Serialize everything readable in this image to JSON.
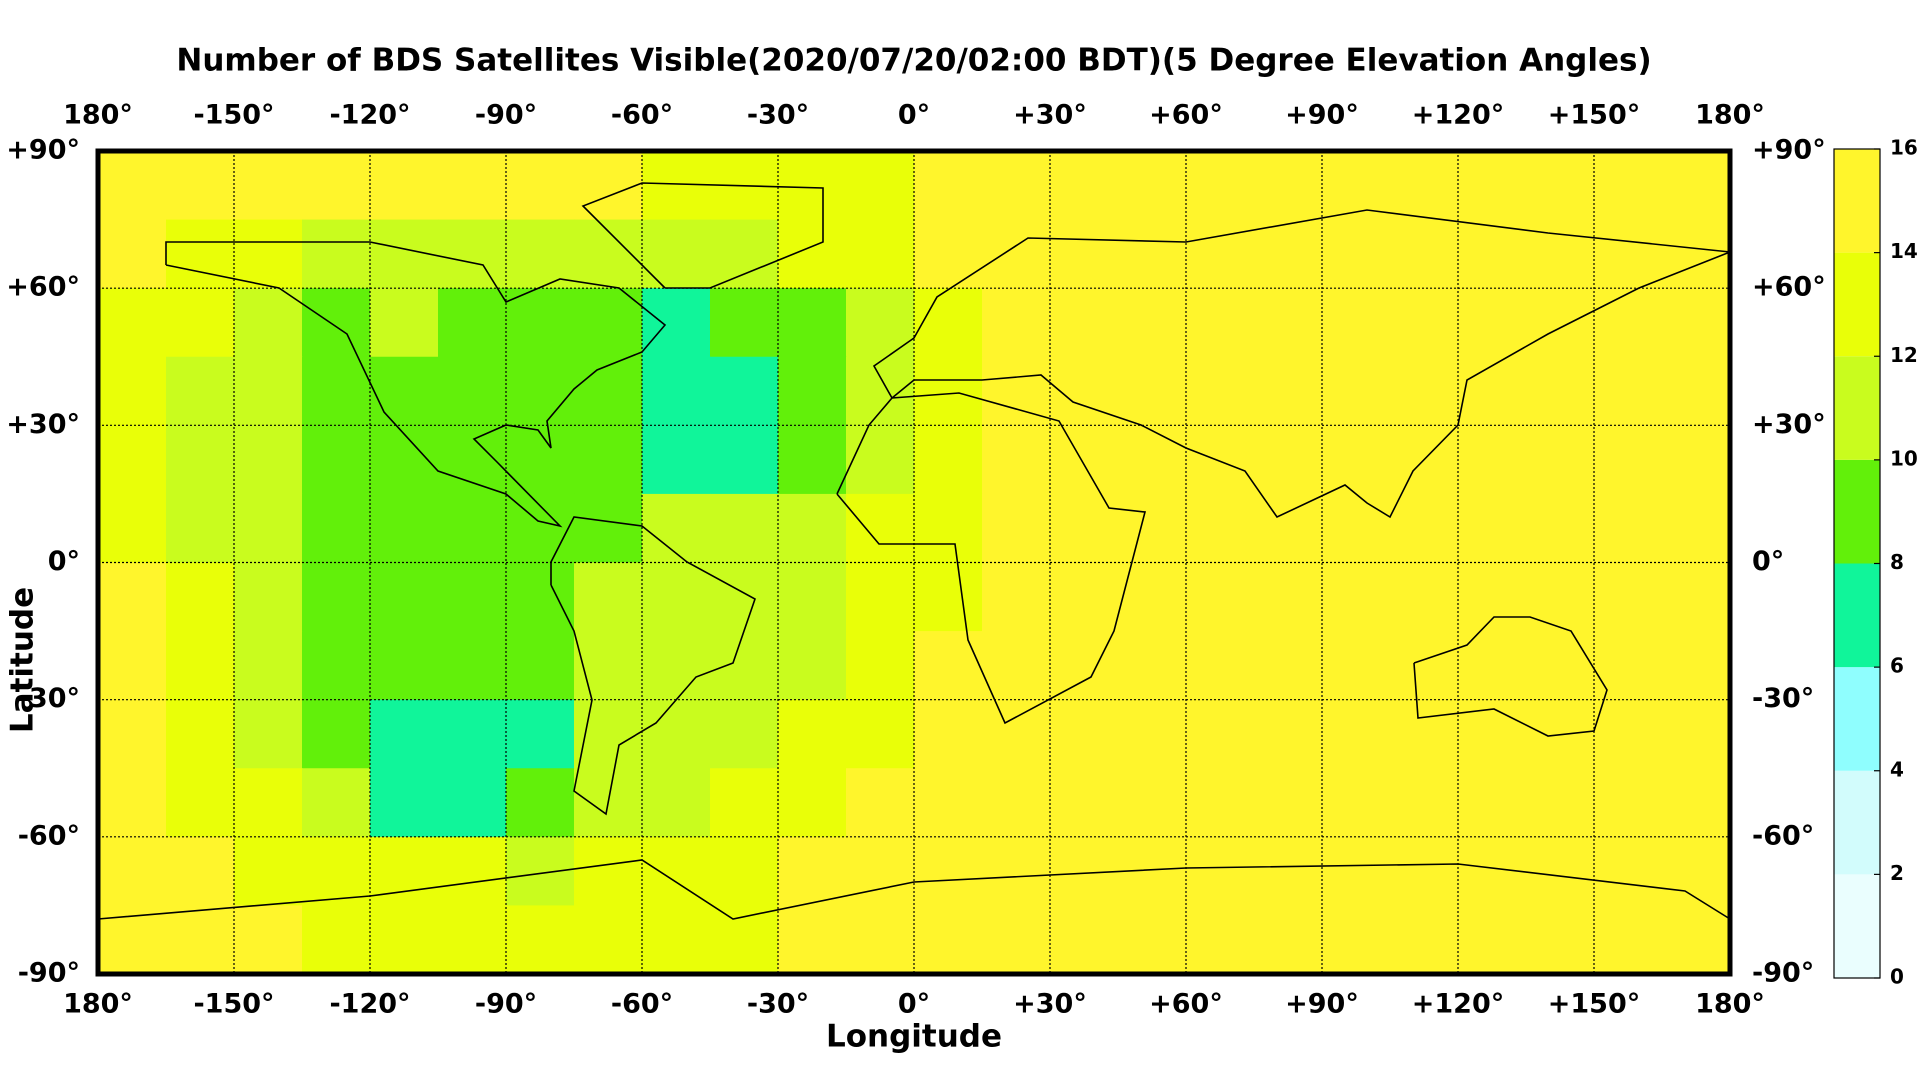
{
  "chart_data": {
    "type": "heatmap",
    "title": "Number of BDS Satellites Visible(2020/07/20/02:00 BDT)(5 Degree Elevation Angles)",
    "x_label": "Longitude",
    "y_label": "Latitude",
    "x": [
      -172.5,
      -157.5,
      -142.5,
      -127.5,
      -112.5,
      -97.5,
      -82.5,
      -67.5,
      -52.5,
      -37.5,
      -22.5,
      -7.5,
      7.5,
      22.5,
      37.5,
      52.5,
      67.5,
      82.5,
      97.5,
      112.5,
      127.5,
      142.5,
      157.5,
      172.5
    ],
    "y": [
      82.5,
      67.5,
      52.5,
      37.5,
      22.5,
      7.5,
      -7.5,
      -22.5,
      -37.5,
      -52.5,
      -67.5,
      -82.5
    ],
    "values": [
      [
        15,
        15,
        15,
        15,
        15,
        15,
        15,
        15,
        13,
        13,
        13,
        13,
        15,
        15,
        15,
        15,
        15,
        15,
        15,
        15,
        15,
        15,
        15,
        15
      ],
      [
        15,
        13,
        13,
        11,
        11,
        11,
        11,
        11,
        11,
        11,
        13,
        13,
        15,
        15,
        15,
        15,
        15,
        15,
        15,
        15,
        15,
        15,
        15,
        15
      ],
      [
        13,
        13,
        11,
        9,
        11,
        9,
        9,
        9,
        7,
        9,
        9,
        11,
        13,
        15,
        15,
        15,
        15,
        15,
        15,
        15,
        15,
        15,
        15,
        15
      ],
      [
        13,
        11,
        11,
        9,
        9,
        9,
        9,
        9,
        7,
        7,
        9,
        11,
        13,
        15,
        15,
        15,
        15,
        15,
        15,
        15,
        15,
        15,
        15,
        15
      ],
      [
        13,
        11,
        11,
        9,
        9,
        9,
        9,
        9,
        7,
        7,
        9,
        11,
        13,
        15,
        15,
        15,
        15,
        15,
        15,
        15,
        15,
        15,
        15,
        15
      ],
      [
        13,
        11,
        11,
        9,
        9,
        9,
        9,
        9,
        11,
        11,
        11,
        13,
        13,
        15,
        15,
        15,
        15,
        15,
        15,
        15,
        15,
        15,
        15,
        15
      ],
      [
        15,
        13,
        11,
        9,
        9,
        9,
        9,
        11,
        11,
        11,
        11,
        13,
        13,
        15,
        15,
        15,
        15,
        15,
        15,
        15,
        15,
        15,
        15,
        15
      ],
      [
        15,
        13,
        11,
        9,
        9,
        9,
        9,
        11,
        11,
        11,
        11,
        13,
        15,
        15,
        15,
        15,
        15,
        15,
        15,
        15,
        15,
        15,
        15,
        15
      ],
      [
        15,
        13,
        11,
        9,
        7,
        7,
        7,
        11,
        11,
        11,
        13,
        13,
        15,
        15,
        15,
        15,
        15,
        15,
        15,
        15,
        15,
        15,
        15,
        15
      ],
      [
        15,
        13,
        13,
        11,
        7,
        7,
        9,
        11,
        11,
        13,
        13,
        15,
        15,
        15,
        15,
        15,
        15,
        15,
        15,
        15,
        15,
        15,
        15,
        15
      ],
      [
        15,
        15,
        13,
        13,
        13,
        13,
        11,
        13,
        13,
        13,
        15,
        15,
        15,
        15,
        15,
        15,
        15,
        15,
        15,
        15,
        15,
        15,
        15,
        15
      ],
      [
        15,
        15,
        15,
        13,
        13,
        13,
        13,
        13,
        13,
        13,
        15,
        15,
        15,
        15,
        15,
        15,
        15,
        15,
        15,
        15,
        15,
        15,
        15,
        15
      ]
    ],
    "xlim": [
      -180,
      180
    ],
    "ylim": [
      -90,
      90
    ],
    "xticks": [
      {
        "value": -180,
        "label": "180°"
      },
      {
        "value": -150,
        "label": "-150°"
      },
      {
        "value": -120,
        "label": "-120°"
      },
      {
        "value": -90,
        "label": "-90°"
      },
      {
        "value": -60,
        "label": "-60°"
      },
      {
        "value": -30,
        "label": "-30°"
      },
      {
        "value": 0,
        "label": "0°"
      },
      {
        "value": 30,
        "label": "+30°"
      },
      {
        "value": 60,
        "label": "+60°"
      },
      {
        "value": 90,
        "label": "+90°"
      },
      {
        "value": 120,
        "label": "+120°"
      },
      {
        "value": 150,
        "label": "+150°"
      },
      {
        "value": 180,
        "label": "180°"
      }
    ],
    "yticks": [
      {
        "value": 90,
        "label": "+90°"
      },
      {
        "value": 60,
        "label": "+60°"
      },
      {
        "value": 30,
        "label": "+30°"
      },
      {
        "value": 0,
        "label": "0°"
      },
      {
        "value": -30,
        "label": "-30°"
      },
      {
        "value": -60,
        "label": "-60°"
      },
      {
        "value": -90,
        "label": "-90°"
      }
    ],
    "grid": true,
    "colorbar": {
      "ticks": [
        0,
        2,
        4,
        6,
        8,
        10,
        12,
        14,
        16
      ],
      "colors": [
        "#eafefe",
        "#d2fcfc",
        "#8ffefe",
        "#10f59a",
        "#62f00a",
        "#c9fc1e",
        "#e9ff08",
        "#fff52c"
      ]
    }
  }
}
